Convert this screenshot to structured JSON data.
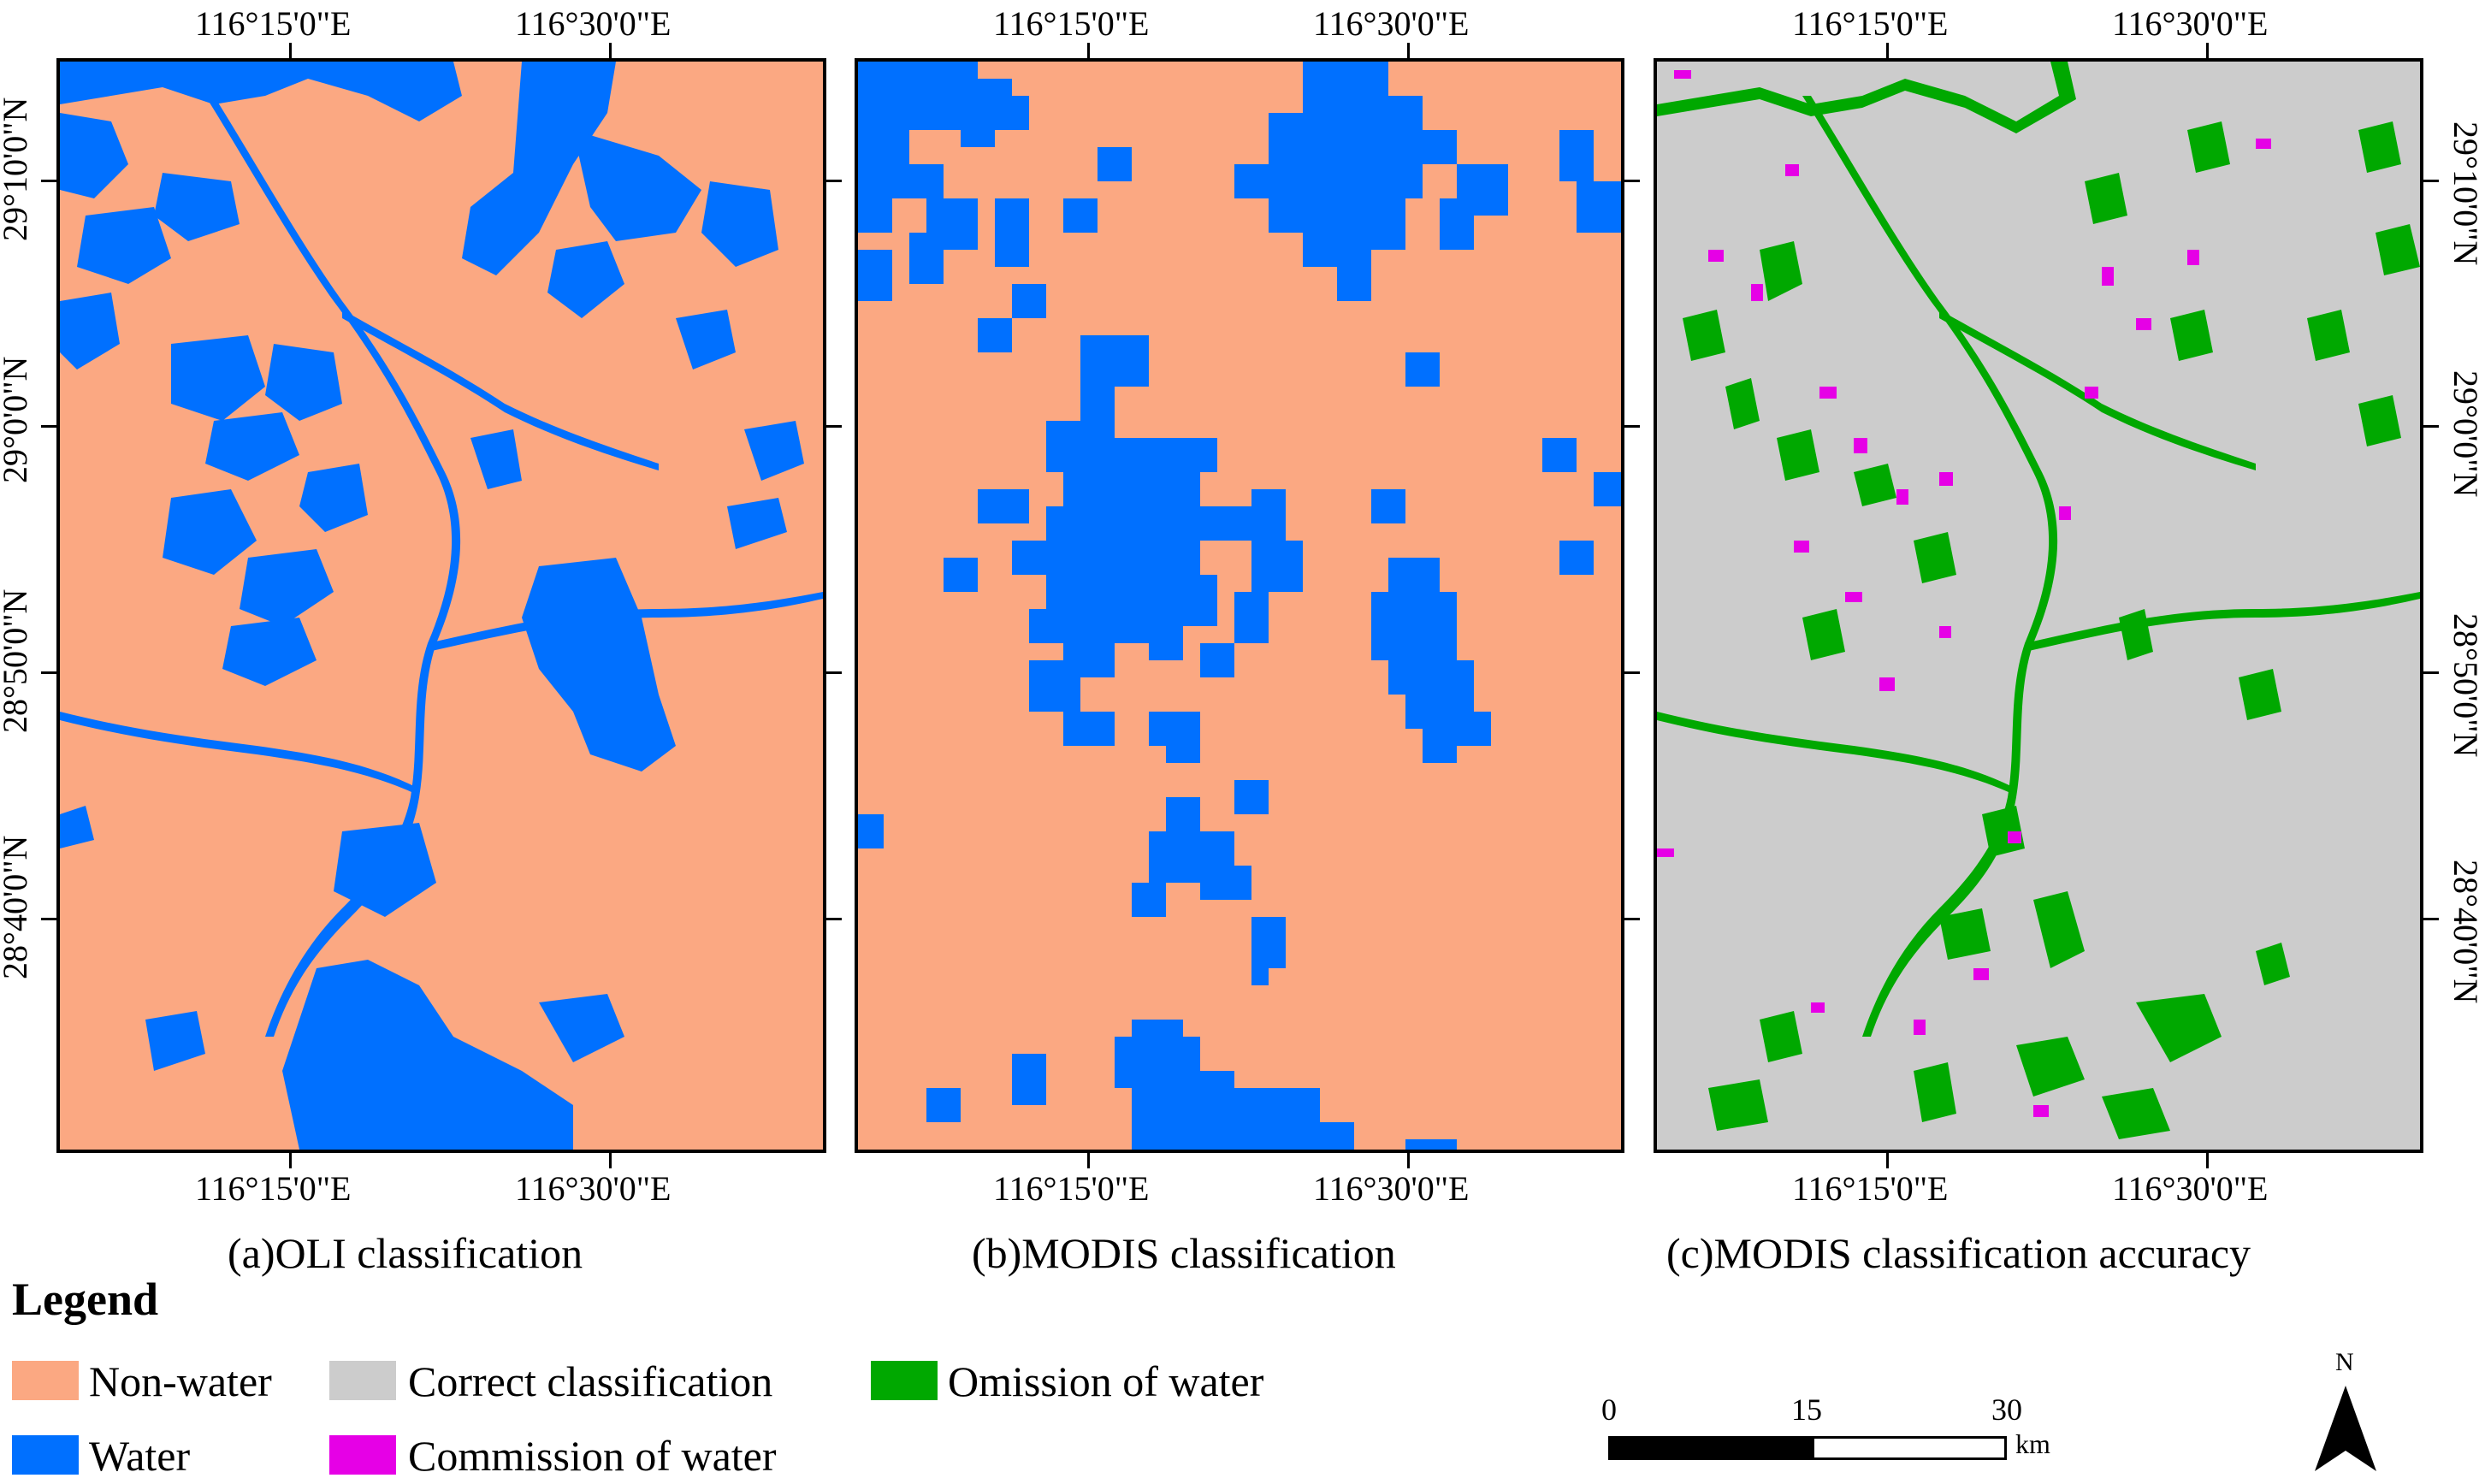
{
  "colors": {
    "non_water": "#FBA882",
    "water": "#0070FF",
    "correct": "#CCCCCC",
    "omission": "#00A800",
    "commission": "#E600E6"
  },
  "coordinates": {
    "top_lon": [
      "116°15'0\"E",
      "116°30'0\"E"
    ],
    "bottom_lon": [
      "116°15'0\"E",
      "116°30'0\"E"
    ],
    "lat": [
      "29°10'0\"N",
      "29°0'0\"N",
      "28°50'0\"N",
      "28°40'0\"N"
    ]
  },
  "panels": [
    {
      "id": "a",
      "caption": "(a)OLI classification",
      "background_role": "non-water"
    },
    {
      "id": "b",
      "caption": "(b)MODIS classification",
      "background_role": "non-water"
    },
    {
      "id": "c",
      "caption": "(c)MODIS classification accuracy",
      "background_role": "correct"
    }
  ],
  "legend": {
    "title": "Legend",
    "items": [
      {
        "label": "Non-water",
        "color": "#FBA882"
      },
      {
        "label": "Correct classification",
        "color": "#CCCCCC"
      },
      {
        "label": "Omission of water",
        "color": "#00A800"
      },
      {
        "label": "Water",
        "color": "#0070FF"
      },
      {
        "label": "Commission of water",
        "color": "#E600E6"
      }
    ]
  },
  "scale_bar": {
    "ticks": [
      "0",
      "15",
      "30"
    ],
    "unit": "km"
  },
  "north_arrow": {
    "label": "N"
  }
}
